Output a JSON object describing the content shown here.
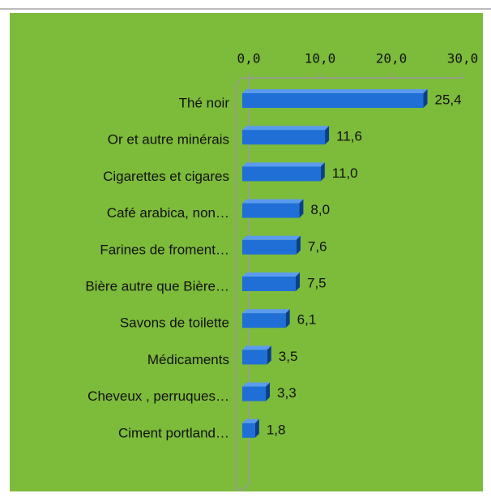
{
  "chart_data": {
    "type": "bar",
    "orientation": "horizontal",
    "categories": [
      "Thé noir",
      "Or et autre minérais",
      "Cigarettes et cigares",
      "Café arabica, non…",
      "Farines de froment…",
      "Bière autre que Bière…",
      "Savons de toilette",
      "Médicaments",
      "Cheveux , perruques…",
      "Ciment portland…"
    ],
    "values": [
      25.4,
      11.6,
      11.0,
      8.0,
      7.6,
      7.5,
      6.1,
      3.5,
      3.3,
      1.8
    ],
    "value_labels": [
      "25,4",
      "11,6",
      "11,0",
      "8,0",
      "7,6",
      "7,5",
      "6,1",
      "3,5",
      "3,3",
      "1,8"
    ],
    "color": "#1f6fd6",
    "xlim": [
      0,
      30
    ],
    "xticks": [
      {
        "value": 0,
        "label": "0,0"
      },
      {
        "value": 10,
        "label": "10,0"
      },
      {
        "value": 20,
        "label": "20,0"
      },
      {
        "value": 30,
        "label": "30,0"
      }
    ]
  }
}
